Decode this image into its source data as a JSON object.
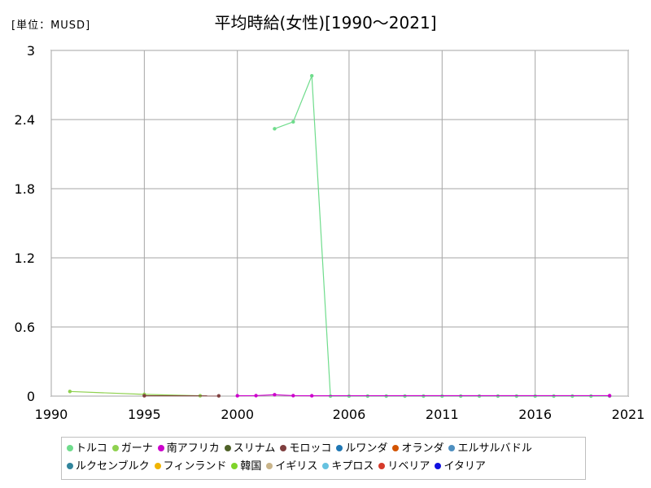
{
  "header": {
    "unit": "[単位：MUSD]",
    "title": "平均時給(女性)[1990～2021]"
  },
  "chart_data": {
    "type": "line",
    "x_ticks": [
      "1990",
      "1995",
      "2000",
      "2006",
      "2011",
      "2016",
      "2021"
    ],
    "y_ticks": [
      "0",
      "0.6",
      "1.2",
      "1.8",
      "2.4",
      "3"
    ],
    "xlim": [
      1990,
      2021
    ],
    "ylim": [
      0,
      3
    ],
    "grid": true,
    "legend_position": "bottom",
    "series": [
      {
        "name": "トルコ",
        "color": "#6fdc8c",
        "points": [
          [
            2002,
            2.32
          ],
          [
            2003,
            2.38
          ],
          [
            2004,
            2.78
          ],
          [
            2005,
            0.0
          ],
          [
            2006,
            0.0
          ],
          [
            2007,
            0.0
          ],
          [
            2008,
            0.0
          ],
          [
            2009,
            0.0
          ],
          [
            2010,
            0.0
          ],
          [
            2011,
            0.0
          ],
          [
            2012,
            0.0
          ],
          [
            2013,
            0.0
          ],
          [
            2014,
            0.0
          ],
          [
            2015,
            0.0
          ],
          [
            2016,
            0.0
          ],
          [
            2017,
            0.0
          ],
          [
            2018,
            0.0
          ],
          [
            2019,
            0.0
          ],
          [
            2020,
            0.0
          ]
        ]
      },
      {
        "name": "ガーナ",
        "color": "#8fd14f",
        "points": [
          [
            1991,
            0.04
          ],
          [
            1995,
            0.015
          ],
          [
            1998,
            0.003
          ]
        ]
      },
      {
        "name": "南アフリカ",
        "color": "#cc00cc",
        "points": [
          [
            2000,
            0.003
          ],
          [
            2001,
            0.004
          ],
          [
            2002,
            0.012
          ],
          [
            2003,
            0.004
          ],
          [
            2004,
            0.003
          ],
          [
            2020,
            0.004
          ]
        ]
      },
      {
        "name": "スリナム",
        "color": "#4f6228",
        "points": []
      },
      {
        "name": "モロッコ",
        "color": "#7f3f3f",
        "points": [
          [
            1995,
            0.003
          ],
          [
            1999,
            0.002
          ]
        ]
      },
      {
        "name": "ルワンダ",
        "color": "#1f77b4",
        "points": []
      },
      {
        "name": "オランダ",
        "color": "#d35400",
        "points": []
      },
      {
        "name": "エルサルバドル",
        "color": "#4e8fc0",
        "points": []
      },
      {
        "name": "ルクセンブルク",
        "color": "#31859c",
        "points": []
      },
      {
        "name": "フィンランド",
        "color": "#f0b400",
        "points": []
      },
      {
        "name": "韓国",
        "color": "#7fd42a",
        "points": []
      },
      {
        "name": "イギリス",
        "color": "#c9b48a",
        "points": []
      },
      {
        "name": "キプロス",
        "color": "#66c2e0",
        "points": []
      },
      {
        "name": "リベリア",
        "color": "#d63a2a",
        "points": []
      },
      {
        "name": "イタリア",
        "color": "#1010e0",
        "points": []
      }
    ]
  }
}
